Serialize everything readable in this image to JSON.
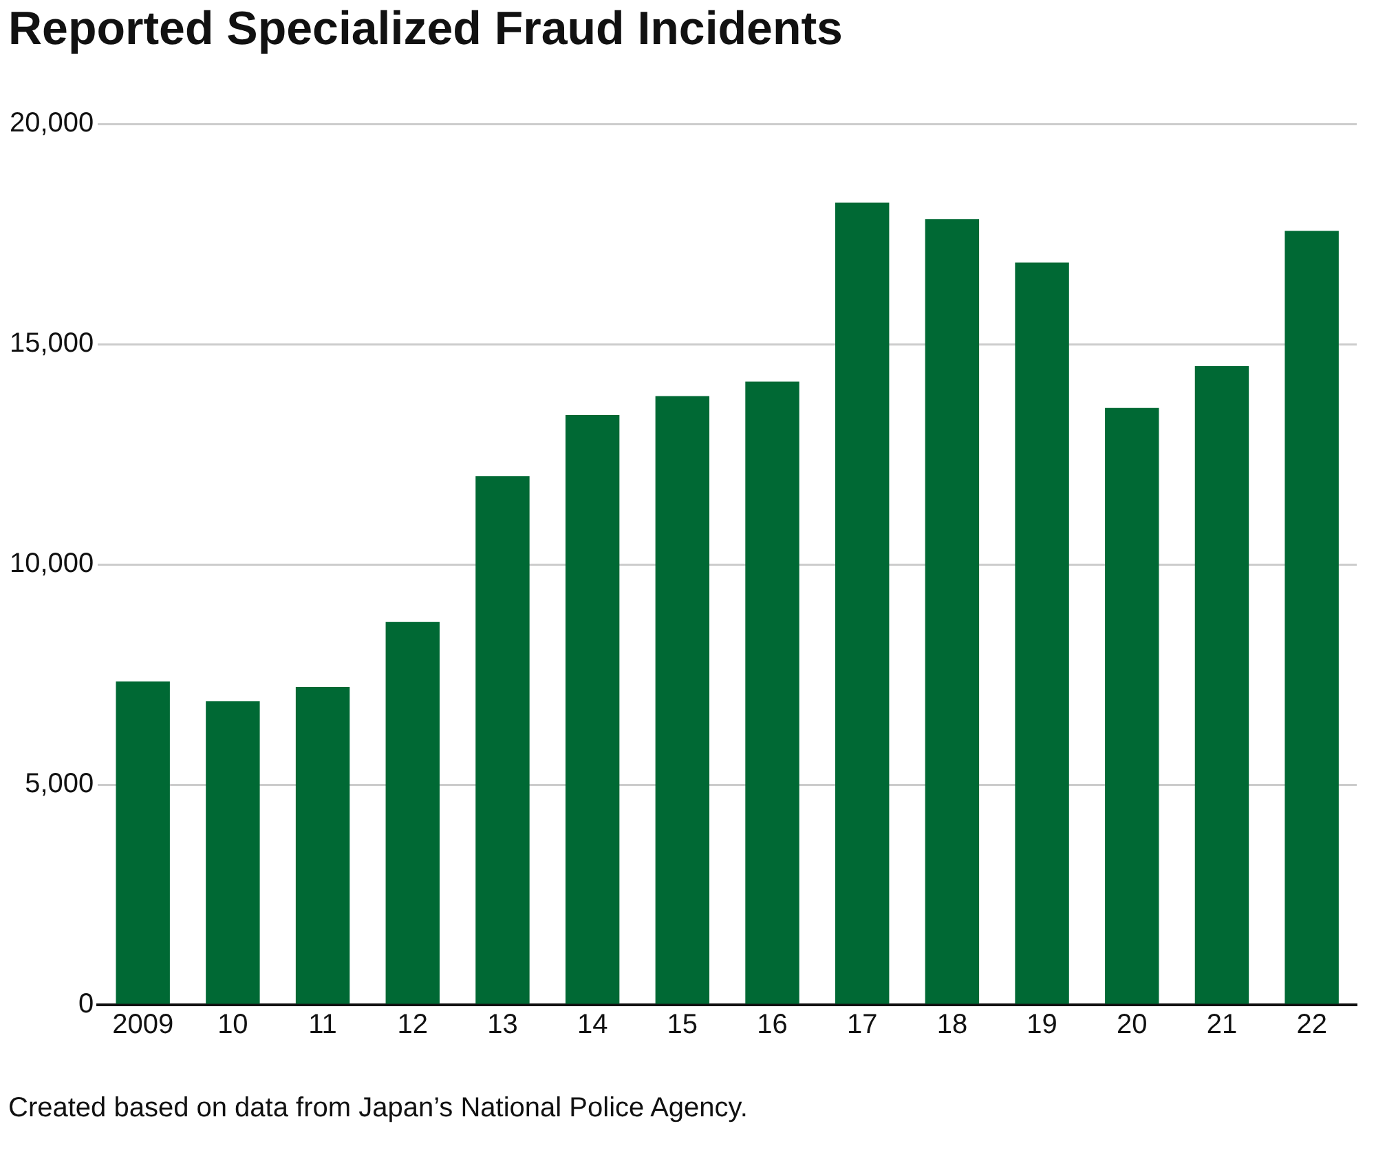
{
  "chart_data": {
    "type": "bar",
    "title": "Reported Specialized Fraud Incidents",
    "categories": [
      "2009",
      "10",
      "11",
      "12",
      "13",
      "14",
      "15",
      "16",
      "17",
      "18",
      "19",
      "20",
      "21",
      "22"
    ],
    "values": [
      7340,
      6890,
      7220,
      8690,
      12000,
      13390,
      13820,
      14150,
      18210,
      17840,
      16850,
      13550,
      14500,
      17570
    ],
    "color": "#006934",
    "ylim": [
      0,
      20000
    ],
    "yticks": [
      {
        "value": 0,
        "label": "0"
      },
      {
        "value": 5000,
        "label": "5,000"
      },
      {
        "value": 10000,
        "label": "10,000"
      },
      {
        "value": 15000,
        "label": "15,000"
      },
      {
        "value": 20000,
        "label": "20,000"
      }
    ],
    "grid": "y",
    "legend": false,
    "annotations": [
      "Created based on data from Japan’s National Police Agency."
    ]
  }
}
